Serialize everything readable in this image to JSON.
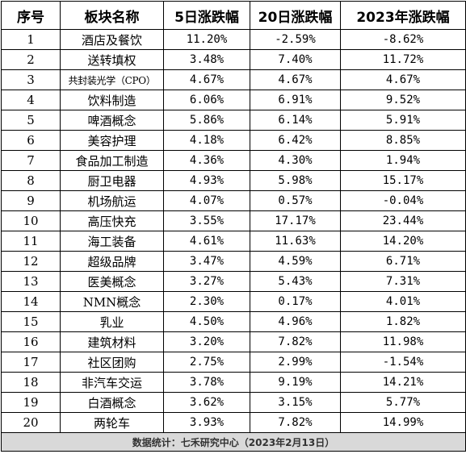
{
  "header": {
    "index": "序号",
    "sector": "板块名称",
    "change_5d": "5日涨跌幅",
    "change_20d": "20日涨跌幅",
    "change_2023": "2023年涨跌幅"
  },
  "rows": [
    {
      "index": "1",
      "sector": "酒店及餐饮",
      "change_5d": "11.20%",
      "change_20d": "-2.59%",
      "change_2023": "-8.62%"
    },
    {
      "index": "2",
      "sector": "送转填权",
      "change_5d": "3.48%",
      "change_20d": "7.40%",
      "change_2023": "11.72%"
    },
    {
      "index": "3",
      "sector": "共封装光学（CPO）",
      "change_5d": "4.67%",
      "change_20d": "4.67%",
      "change_2023": "4.67%"
    },
    {
      "index": "4",
      "sector": "饮料制造",
      "change_5d": "6.06%",
      "change_20d": "6.91%",
      "change_2023": "9.52%"
    },
    {
      "index": "5",
      "sector": "啤酒概念",
      "change_5d": "5.86%",
      "change_20d": "6.14%",
      "change_2023": "5.91%"
    },
    {
      "index": "6",
      "sector": "美容护理",
      "change_5d": "4.18%",
      "change_20d": "6.42%",
      "change_2023": "8.85%"
    },
    {
      "index": "7",
      "sector": "食品加工制造",
      "change_5d": "4.36%",
      "change_20d": "4.30%",
      "change_2023": "1.94%"
    },
    {
      "index": "8",
      "sector": "厨卫电器",
      "change_5d": "4.93%",
      "change_20d": "5.98%",
      "change_2023": "15.17%"
    },
    {
      "index": "9",
      "sector": "机场航运",
      "change_5d": "4.07%",
      "change_20d": "0.57%",
      "change_2023": "-0.04%"
    },
    {
      "index": "10",
      "sector": "高压快充",
      "change_5d": "3.55%",
      "change_20d": "17.17%",
      "change_2023": "23.44%"
    },
    {
      "index": "11",
      "sector": "海工装备",
      "change_5d": "4.61%",
      "change_20d": "11.63%",
      "change_2023": "14.20%"
    },
    {
      "index": "12",
      "sector": "超级品牌",
      "change_5d": "3.47%",
      "change_20d": "4.59%",
      "change_2023": "6.71%"
    },
    {
      "index": "13",
      "sector": "医美概念",
      "change_5d": "3.27%",
      "change_20d": "5.43%",
      "change_2023": "7.31%"
    },
    {
      "index": "14",
      "sector": "NMN概念",
      "change_5d": "2.30%",
      "change_20d": "0.17%",
      "change_2023": "4.01%"
    },
    {
      "index": "15",
      "sector": "乳业",
      "change_5d": "4.50%",
      "change_20d": "4.96%",
      "change_2023": "1.82%"
    },
    {
      "index": "16",
      "sector": "建筑材料",
      "change_5d": "3.20%",
      "change_20d": "7.82%",
      "change_2023": "11.98%"
    },
    {
      "index": "17",
      "sector": "社区团购",
      "change_5d": "2.75%",
      "change_20d": "2.99%",
      "change_2023": "-1.54%"
    },
    {
      "index": "18",
      "sector": "非汽车交运",
      "change_5d": "3.78%",
      "change_20d": "9.19%",
      "change_2023": "14.21%"
    },
    {
      "index": "19",
      "sector": "白酒概念",
      "change_5d": "3.62%",
      "change_20d": "3.15%",
      "change_2023": "5.77%"
    },
    {
      "index": "20",
      "sector": "两轮车",
      "change_5d": "3.93%",
      "change_20d": "7.82%",
      "change_2023": "14.99%"
    }
  ],
  "footer": {
    "source": "数据统计：七禾研究中心（2023年2月13日）"
  },
  "colors": {
    "border": "#000000",
    "footer_bg": "#d9d9d9"
  }
}
